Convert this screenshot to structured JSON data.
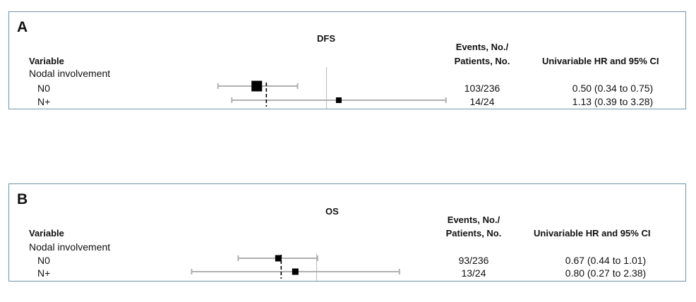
{
  "chart_data": [
    {
      "type": "forest",
      "panel_label": "A",
      "title": "DFS",
      "columns": {
        "variable": "Variable",
        "events_line1": "Events, No./",
        "events_line2": "Patients, No.",
        "hr": "Univariable HR and 95% CI"
      },
      "group_label": "Nodal involvement",
      "rows": [
        {
          "label": "N0",
          "events": "103/236",
          "hr_text": "0.50 (0.34 to 0.75)",
          "hr": 0.5,
          "ci_low": 0.34,
          "ci_high": 0.75
        },
        {
          "label": "N+",
          "events": "14/24",
          "hr_text": "1.13 (0.39 to 3.28)",
          "hr": 1.13,
          "ci_low": 0.39,
          "ci_high": 3.28
        }
      ],
      "reference_line": 1,
      "pooled_line": 0.55,
      "x_scale": "log"
    },
    {
      "type": "forest",
      "panel_label": "B",
      "title": "OS",
      "columns": {
        "variable": "Variable",
        "events_line1": "Events, No./",
        "events_line2": "Patients, No.",
        "hr": "Univariable HR and 95% CI"
      },
      "group_label": "Nodal involvement",
      "rows": [
        {
          "label": "N0",
          "events": "93/236",
          "hr_text": "0.67 (0.44 to 1.01)",
          "hr": 0.67,
          "ci_low": 0.44,
          "ci_high": 1.01
        },
        {
          "label": "N+",
          "events": "13/24",
          "hr_text": "0.80 (0.27 to 2.38)",
          "hr": 0.8,
          "ci_low": 0.27,
          "ci_high": 2.38
        }
      ],
      "reference_line": 1,
      "pooled_line": 0.69,
      "x_scale": "log"
    }
  ],
  "colors": {
    "border": "#6f94ab",
    "ci_line": "#b0b0b0",
    "reference_line": "#c4c4c4",
    "marker": "#000000"
  }
}
